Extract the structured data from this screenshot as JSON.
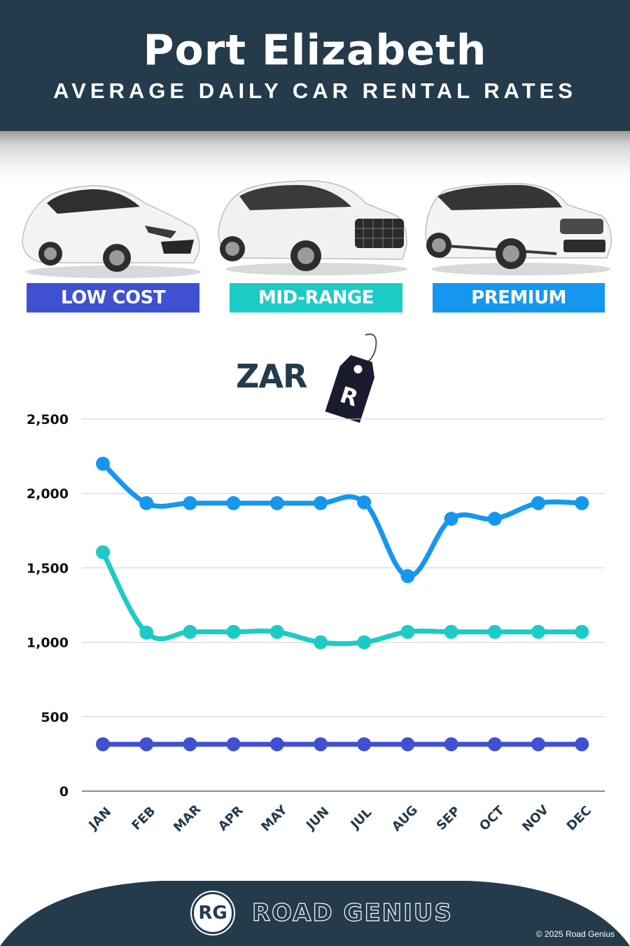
{
  "header": {
    "title": "Port Elizabeth",
    "subtitle": "AVERAGE DAILY CAR RENTAL RATES"
  },
  "categories": [
    {
      "label": "LOW COST",
      "color": "#3f51d1",
      "car_icon": "hatchback-car-icon"
    },
    {
      "label": "MID-RANGE",
      "color": "#1dcbc6",
      "car_icon": "suv-car-icon"
    },
    {
      "label": "PREMIUM",
      "color": "#1597ef",
      "car_icon": "luxury-suv-car-icon"
    }
  ],
  "currency": {
    "label": "ZAR",
    "tag_symbol": "R"
  },
  "chart_data": {
    "type": "line",
    "title": "Port Elizabeth Average Daily Car Rental Rates",
    "xlabel": "",
    "ylabel": "ZAR",
    "ylim": [
      0,
      2500
    ],
    "yticks": [
      0,
      500,
      1000,
      1500,
      2000,
      2500
    ],
    "ytick_labels": [
      "0",
      "500",
      "1,000",
      "1,500",
      "2,000",
      "2,500"
    ],
    "grid": true,
    "legend_position": "top (category badges)",
    "categories": [
      "JAN",
      "FEB",
      "MAR",
      "APR",
      "MAY",
      "JUN",
      "JUL",
      "AUG",
      "SEP",
      "OCT",
      "NOV",
      "DEC"
    ],
    "series": [
      {
        "name": "PREMIUM",
        "color": "#1597ef",
        "values": [
          2200,
          1935,
          1935,
          1935,
          1935,
          1935,
          1940,
          1445,
          1830,
          1830,
          1935,
          1935
        ]
      },
      {
        "name": "MID-RANGE",
        "color": "#1dcbc6",
        "values": [
          1605,
          1065,
          1070,
          1070,
          1070,
          1000,
          1000,
          1070,
          1070,
          1070,
          1070,
          1070
        ]
      },
      {
        "name": "LOW COST",
        "color": "#3f51d1",
        "values": [
          315,
          315,
          315,
          315,
          315,
          315,
          315,
          315,
          315,
          315,
          315,
          315
        ]
      }
    ]
  },
  "footer": {
    "logo_initials": "RG",
    "brand": "ROAD GENIUS",
    "copyright": "© 2025 Road Genius"
  }
}
